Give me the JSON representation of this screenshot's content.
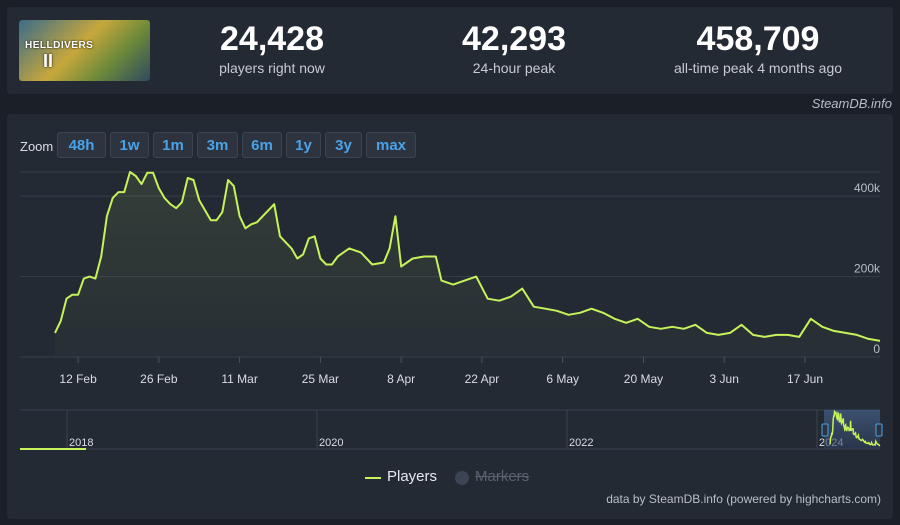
{
  "game": {
    "cover_icon": "game-cover-image",
    "cover_logo_text": "HELLDIVERS",
    "cover_logo_num": "II"
  },
  "stats": [
    {
      "value": "24,428",
      "label": "players right now"
    },
    {
      "value": "42,293",
      "label": "24-hour peak"
    },
    {
      "value": "458,709",
      "label": "all-time peak 4 months ago"
    }
  ],
  "attribution_top": "SteamDB.info",
  "zoom": {
    "label": "Zoom",
    "buttons": [
      "48h",
      "1w",
      "1m",
      "3m",
      "6m",
      "1y",
      "3y",
      "max"
    ]
  },
  "colors": {
    "series": "#c7f35a",
    "background": "#1b2028",
    "panel": "#242a34",
    "accent": "#4aa3e8"
  },
  "chart_data": {
    "type": "line",
    "xlabel": "",
    "ylabel": "",
    "ylim": [
      0,
      460000
    ],
    "xlim": [
      "2024-02-08",
      "2024-06-30"
    ],
    "grid": true,
    "legend_position": "bottom-center",
    "x_tick_labels": [
      "12 Feb",
      "26 Feb",
      "11 Mar",
      "25 Mar",
      "8 Apr",
      "22 Apr",
      "6 May",
      "20 May",
      "3 Jun",
      "17 Jun"
    ],
    "y_tick_labels": [
      "0",
      "200k",
      "400k"
    ],
    "y_ticks": [
      0,
      200000,
      400000
    ],
    "series": [
      {
        "name": "Players",
        "x": [
          "2024-02-08",
          "2024-02-09",
          "2024-02-10",
          "2024-02-11",
          "2024-02-12",
          "2024-02-13",
          "2024-02-14",
          "2024-02-15",
          "2024-02-16",
          "2024-02-17",
          "2024-02-18",
          "2024-02-19",
          "2024-02-20",
          "2024-02-21",
          "2024-02-22",
          "2024-02-23",
          "2024-02-24",
          "2024-02-25",
          "2024-02-26",
          "2024-02-27",
          "2024-02-28",
          "2024-02-29",
          "2024-03-01",
          "2024-03-02",
          "2024-03-03",
          "2024-03-04",
          "2024-03-05",
          "2024-03-06",
          "2024-03-07",
          "2024-03-08",
          "2024-03-09",
          "2024-03-10",
          "2024-03-11",
          "2024-03-12",
          "2024-03-13",
          "2024-03-14",
          "2024-03-15",
          "2024-03-16",
          "2024-03-17",
          "2024-03-18",
          "2024-03-19",
          "2024-03-20",
          "2024-03-21",
          "2024-03-22",
          "2024-03-23",
          "2024-03-24",
          "2024-03-25",
          "2024-03-26",
          "2024-03-27",
          "2024-03-28",
          "2024-03-30",
          "2024-04-01",
          "2024-04-03",
          "2024-04-05",
          "2024-04-06",
          "2024-04-07",
          "2024-04-08",
          "2024-04-10",
          "2024-04-12",
          "2024-04-14",
          "2024-04-15",
          "2024-04-17",
          "2024-04-19",
          "2024-04-21",
          "2024-04-23",
          "2024-04-25",
          "2024-04-27",
          "2024-04-29",
          "2024-05-01",
          "2024-05-03",
          "2024-05-05",
          "2024-05-07",
          "2024-05-09",
          "2024-05-11",
          "2024-05-13",
          "2024-05-15",
          "2024-05-17",
          "2024-05-19",
          "2024-05-21",
          "2024-05-23",
          "2024-05-25",
          "2024-05-27",
          "2024-05-29",
          "2024-05-31",
          "2024-06-02",
          "2024-06-04",
          "2024-06-06",
          "2024-06-08",
          "2024-06-10",
          "2024-06-12",
          "2024-06-14",
          "2024-06-16",
          "2024-06-18",
          "2024-06-20",
          "2024-06-22",
          "2024-06-24",
          "2024-06-26",
          "2024-06-28",
          "2024-06-30"
        ],
        "values": [
          60000,
          90000,
          145000,
          155000,
          155000,
          195000,
          200000,
          195000,
          250000,
          350000,
          395000,
          410000,
          410000,
          460000,
          450000,
          430000,
          458000,
          458000,
          420000,
          395000,
          380000,
          370000,
          385000,
          445000,
          440000,
          390000,
          365000,
          340000,
          340000,
          360000,
          440000,
          425000,
          350000,
          320000,
          330000,
          335000,
          350000,
          365000,
          380000,
          300000,
          285000,
          270000,
          245000,
          255000,
          295000,
          300000,
          245000,
          230000,
          230000,
          250000,
          270000,
          260000,
          230000,
          235000,
          270000,
          350000,
          225000,
          245000,
          250000,
          250000,
          190000,
          180000,
          190000,
          200000,
          145000,
          140000,
          150000,
          170000,
          125000,
          120000,
          115000,
          105000,
          110000,
          120000,
          110000,
          95000,
          85000,
          95000,
          75000,
          70000,
          75000,
          70000,
          80000,
          60000,
          55000,
          60000,
          80000,
          55000,
          50000,
          55000,
          55000,
          50000,
          95000,
          75000,
          65000,
          60000,
          55000,
          45000,
          40000
        ]
      }
    ],
    "navigator": {
      "tick_labels": [
        "2018",
        "2020",
        "2022",
        "2024"
      ]
    }
  },
  "legend": {
    "players_label": "Players",
    "markers_label": "Markers"
  },
  "attribution_bottom": "data by SteamDB.info (powered by highcharts.com)"
}
